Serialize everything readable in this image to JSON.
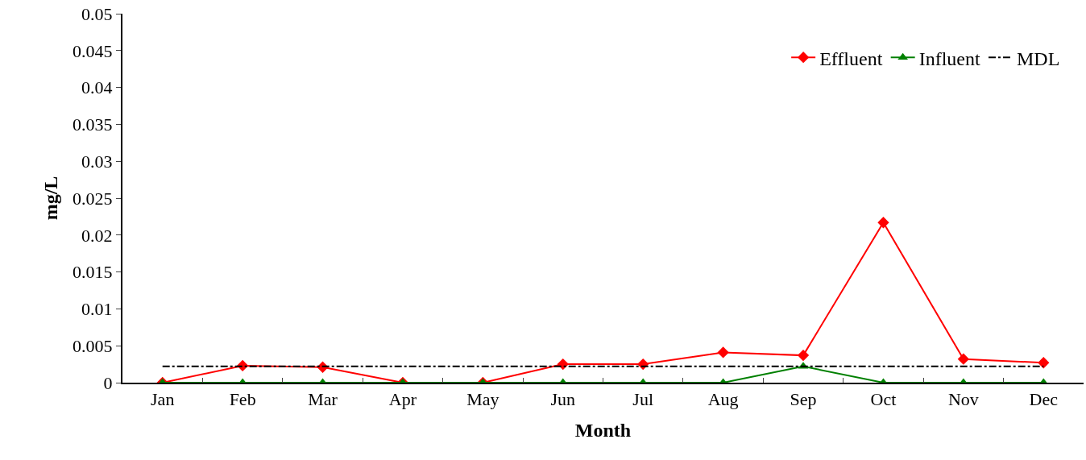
{
  "chart_data": {
    "type": "line",
    "xlabel": "Month",
    "ylabel": "mg/L",
    "categories": [
      "Jan",
      "Feb",
      "Mar",
      "Apr",
      "May",
      "Jun",
      "Jul",
      "Aug",
      "Sep",
      "Oct",
      "Nov",
      "Dec"
    ],
    "series": [
      {
        "name": "Effluent",
        "color": "#ff0000",
        "marker": "diamond",
        "line_style": "solid",
        "values": [
          0,
          0.0023,
          0.0021,
          0,
          0,
          0.0025,
          0.0025,
          0.0041,
          0.0037,
          0.0217,
          0.0032,
          0.0027
        ]
      },
      {
        "name": "Influent",
        "color": "#008000",
        "marker": "triangle",
        "line_style": "solid",
        "values": [
          0,
          0,
          0,
          0,
          0,
          0,
          0,
          0,
          0.0022,
          0,
          0,
          0
        ]
      },
      {
        "name": "MDL",
        "color": "#000000",
        "marker": "none",
        "line_style": "dashed",
        "values": [
          0.0022,
          0.0022,
          0.0022,
          0.0022,
          0.0022,
          0.0022,
          0.0022,
          0.0022,
          0.0022,
          0.0022,
          0.0022,
          0.0022
        ]
      }
    ],
    "ylim": [
      0,
      0.05
    ],
    "yticks": [
      0,
      0.005,
      0.01,
      0.015,
      0.02,
      0.025,
      0.03,
      0.035,
      0.04,
      0.045,
      0.05
    ],
    "grid": false,
    "legend": "top right"
  }
}
